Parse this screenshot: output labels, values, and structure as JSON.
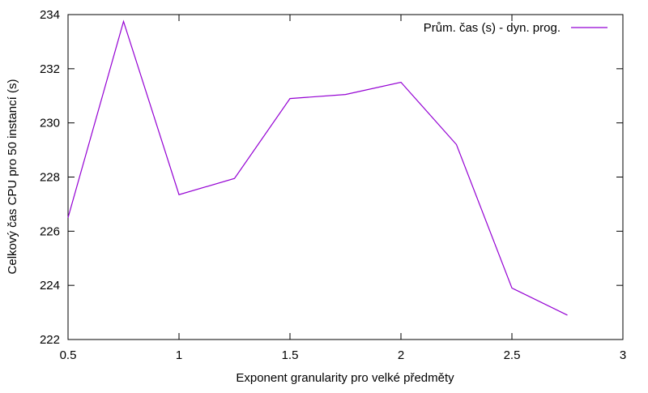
{
  "chart_data": {
    "type": "line",
    "title": "",
    "xlabel": "Exponent granularity pro velké předměty",
    "ylabel": "Celkový čas CPU pro 50 instancí (s)",
    "xlim": [
      0.5,
      3
    ],
    "ylim": [
      222,
      234
    ],
    "x_ticks": [
      0.5,
      1,
      1.5,
      2,
      2.5,
      3
    ],
    "x_tick_labels": [
      "0.5",
      "1",
      "1.5",
      "2",
      "2.5",
      "3"
    ],
    "y_ticks": [
      222,
      224,
      226,
      228,
      230,
      232,
      234
    ],
    "y_tick_labels": [
      "222",
      "224",
      "226",
      "228",
      "230",
      "232",
      "234"
    ],
    "grid": false,
    "legend_position": "top-right",
    "series": [
      {
        "name": "Prům. čas (s) - dyn. prog.",
        "color": "#9400d3",
        "x": [
          0.5,
          0.75,
          1.0,
          1.25,
          1.5,
          1.75,
          2.0,
          2.25,
          2.5,
          2.75
        ],
        "y": [
          226.5,
          233.75,
          227.35,
          227.95,
          230.9,
          231.05,
          231.5,
          229.2,
          223.9,
          222.9
        ]
      }
    ]
  }
}
